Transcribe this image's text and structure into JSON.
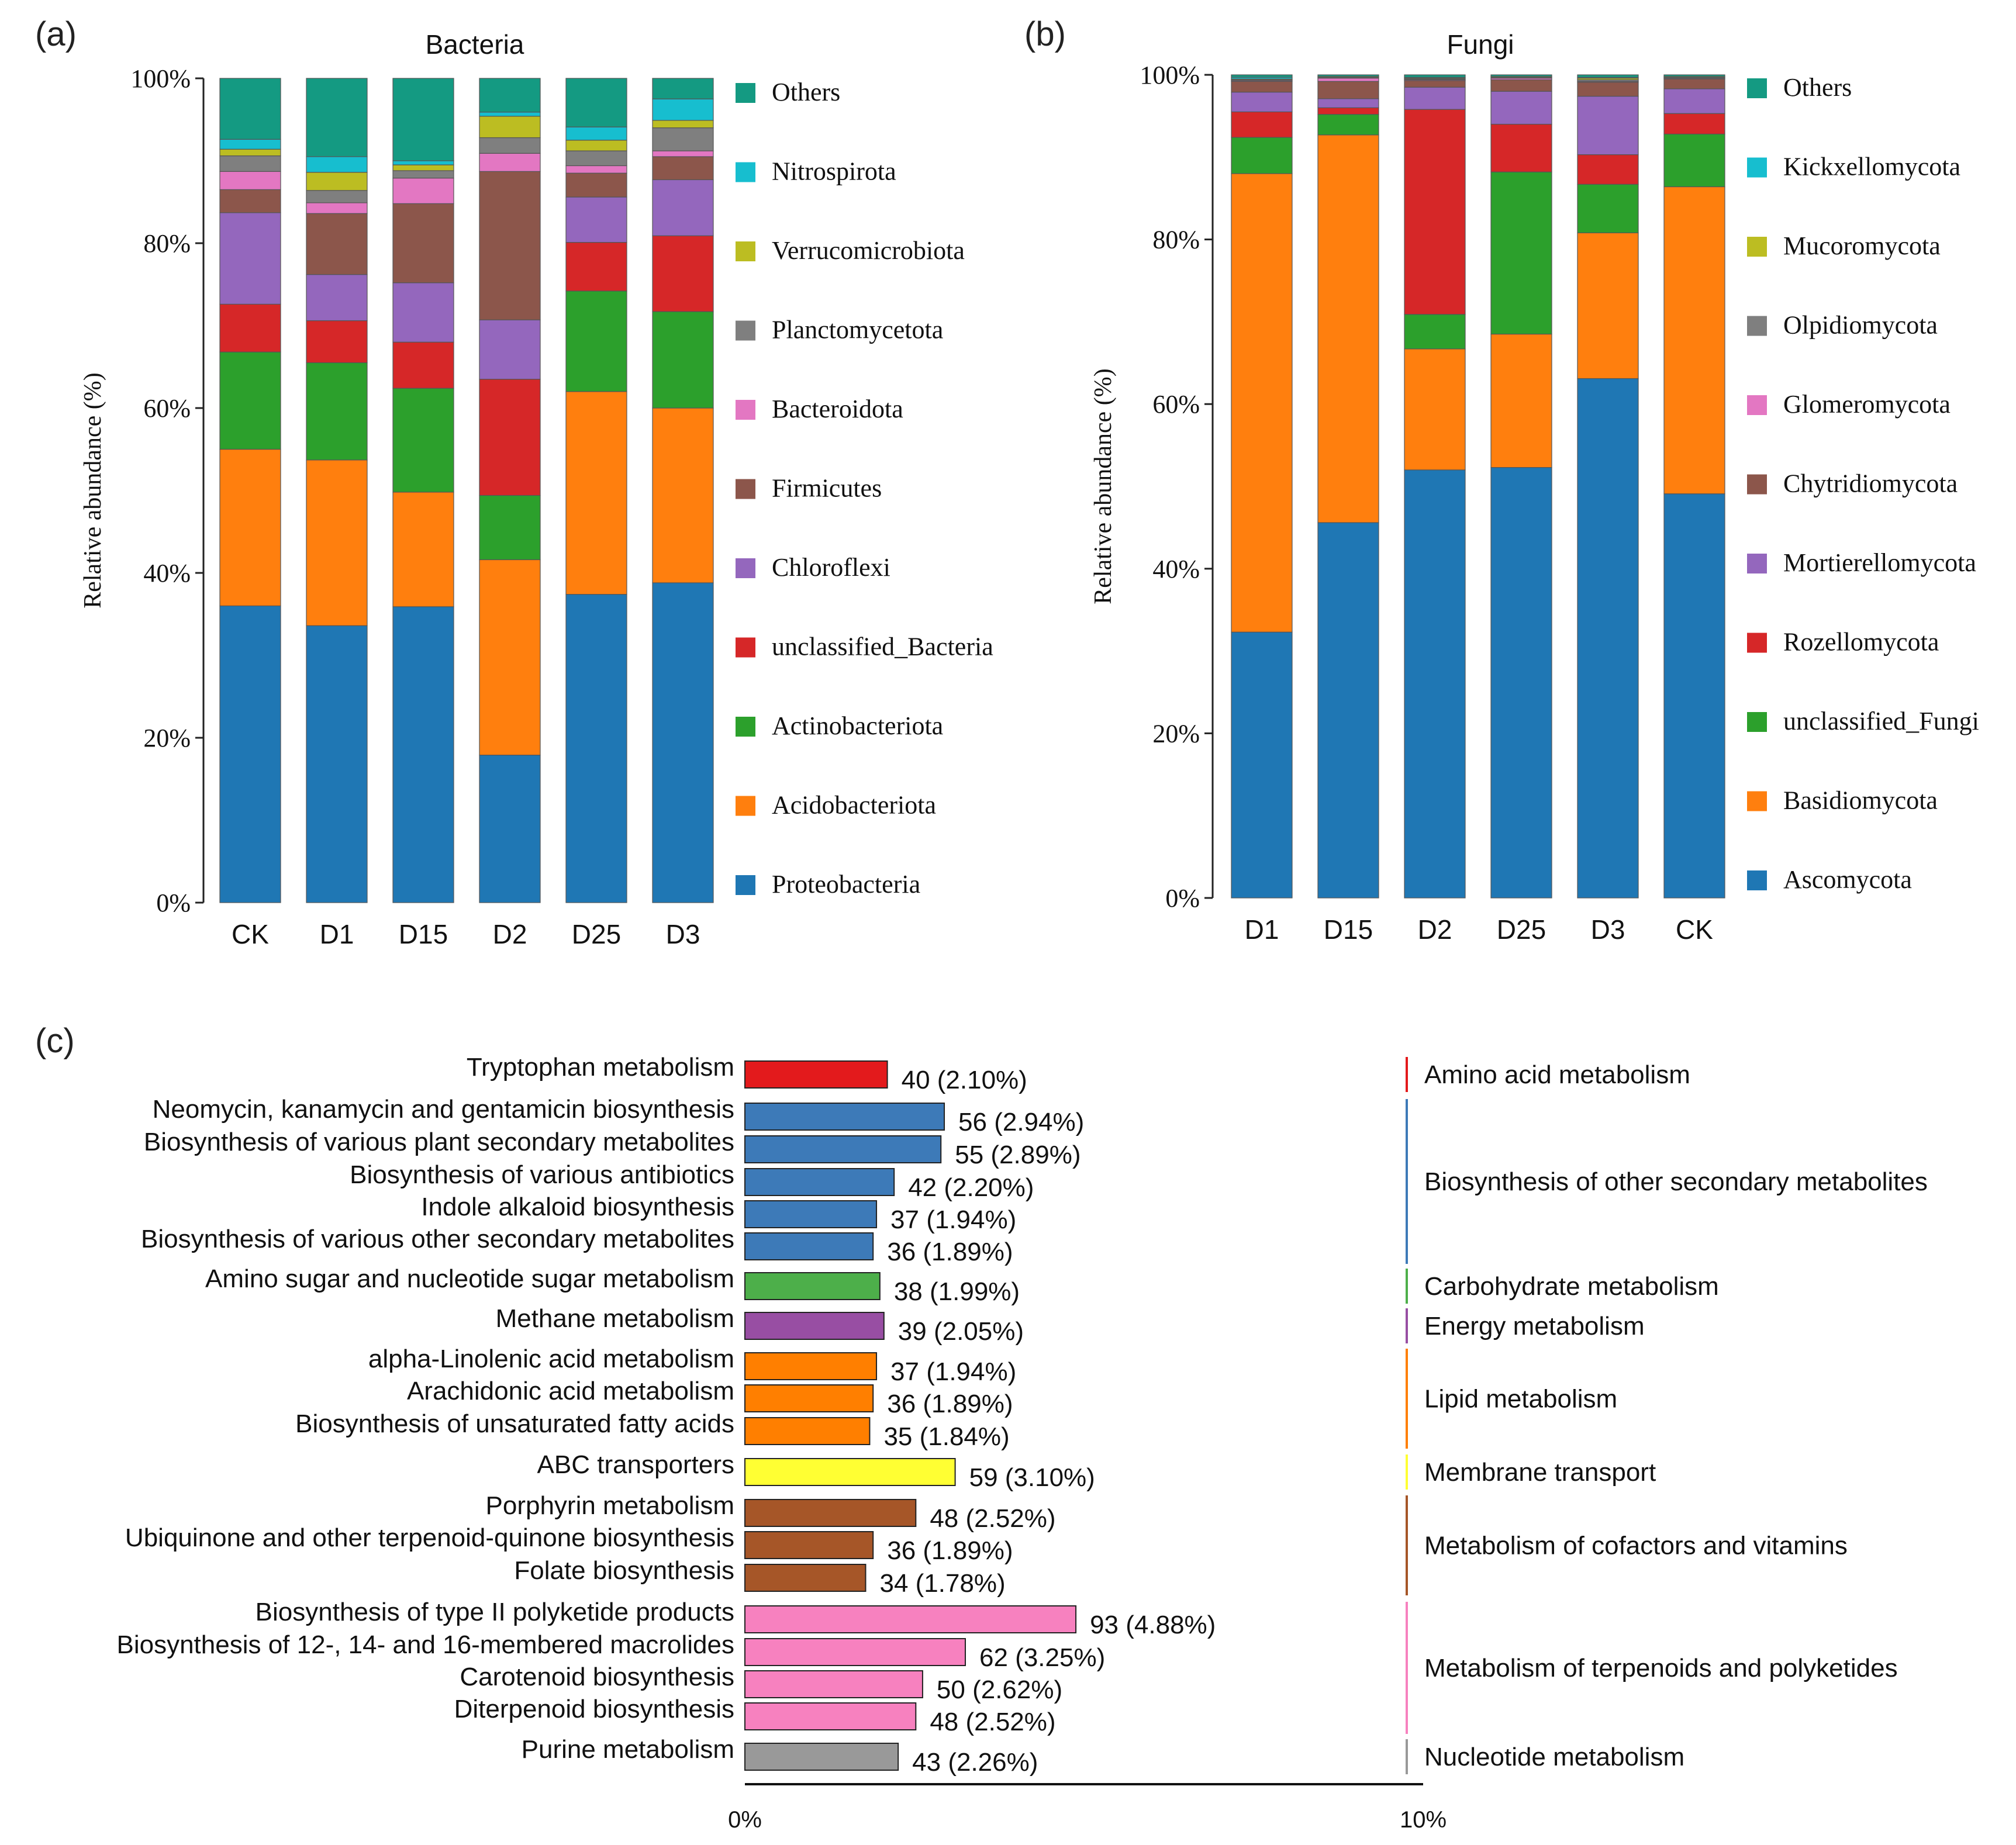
{
  "panels": {
    "a": {
      "label": "(a)"
    },
    "b": {
      "label": "(b)"
    },
    "c": {
      "label": "(c)"
    }
  },
  "colors": {
    "Ascomycota": "#1f77b4",
    "Basidiomycota": "#ff7f0e",
    "unclassified_Fungi": "#2ca02c",
    "Rozellomycota": "#d62728",
    "Mortierellomycota": "#9467bd",
    "Chytridiomycota": "#8c564b",
    "Glomeromycota": "#e377c2",
    "Olpidiomycota": "#7f7f7f",
    "Mucoromycota": "#bcbd22",
    "Kickxellomycota": "#17becf",
    "Others": "#149a82",
    "Proteobacteria": "#1f77b4",
    "Acidobacteriota": "#ff7f0e",
    "Actinobacteriota": "#2ca02c",
    "unclassified_Bacteria": "#d62728",
    "Chloroflexi": "#9467bd",
    "Firmicutes": "#8c564b",
    "Bacteroidota": "#e377c2",
    "Planctomycetota": "#7f7f7f",
    "Verrucomicrobiota": "#bcbd22",
    "Nitrospirota": "#17becf"
  },
  "chart_data": [
    {
      "type": "bar",
      "stacked": true,
      "title": "Bacteria",
      "ylabel": "Relative abundance (%)",
      "xlabel": "",
      "ylim": [
        0,
        100
      ],
      "yticks": [
        "0%",
        "20%",
        "40%",
        "60%",
        "80%",
        "100%"
      ],
      "categories": [
        "CK",
        "D1",
        "D15",
        "D2",
        "D25",
        "D3"
      ],
      "series": [
        {
          "name": "Proteobacteria",
          "values": [
            36.0,
            33.6,
            35.9,
            17.9,
            37.4,
            38.8
          ]
        },
        {
          "name": "Acidobacteriota",
          "values": [
            19.0,
            20.1,
            13.9,
            23.7,
            24.6,
            21.2
          ]
        },
        {
          "name": "Actinobacteriota",
          "values": [
            11.8,
            11.8,
            12.6,
            7.8,
            12.2,
            11.7
          ]
        },
        {
          "name": "unclassified_Bacteria",
          "values": [
            5.8,
            5.1,
            5.6,
            14.1,
            5.9,
            9.2
          ]
        },
        {
          "name": "Chloroflexi",
          "values": [
            11.1,
            5.6,
            7.2,
            7.2,
            5.5,
            6.8
          ]
        },
        {
          "name": "Firmicutes",
          "values": [
            2.8,
            7.4,
            9.6,
            18.0,
            2.9,
            2.8
          ]
        },
        {
          "name": "Bacteroidota",
          "values": [
            2.2,
            1.3,
            3.1,
            2.2,
            0.9,
            0.7
          ]
        },
        {
          "name": "Planctomycetota",
          "values": [
            1.9,
            1.5,
            0.9,
            1.9,
            1.8,
            2.8
          ]
        },
        {
          "name": "Verrucomicrobiota",
          "values": [
            0.8,
            2.2,
            0.7,
            2.6,
            1.3,
            0.9
          ]
        },
        {
          "name": "Nitrospirota",
          "values": [
            1.2,
            1.9,
            0.5,
            0.5,
            1.6,
            2.6
          ]
        },
        {
          "name": "Others",
          "values": [
            7.4,
            9.5,
            10.0,
            4.1,
            5.9,
            2.5
          ]
        }
      ],
      "legend": [
        "Others",
        "Nitrospirota",
        "Verrucomicrobiota",
        "Planctomycetota",
        "Bacteroidota",
        "Firmicutes",
        "Chloroflexi",
        "unclassified_Bacteria",
        "Actinobacteriota",
        "Acidobacteriota",
        "Proteobacteria"
      ],
      "legend_position": "right"
    },
    {
      "type": "bar",
      "stacked": true,
      "title": "Fungi",
      "ylabel": "Relative abundance (%)",
      "xlabel": "",
      "ylim": [
        0,
        100
      ],
      "yticks": [
        "0%",
        "20%",
        "40%",
        "60%",
        "80%",
        "100%"
      ],
      "categories": [
        "D1",
        "D15",
        "D2",
        "D25",
        "D3",
        "CK"
      ],
      "series": [
        {
          "name": "Ascomycota",
          "values": [
            32.3,
            45.6,
            52.0,
            52.3,
            63.1,
            49.1
          ]
        },
        {
          "name": "Basidiomycota",
          "values": [
            55.7,
            47.1,
            14.7,
            16.2,
            17.7,
            37.3
          ]
        },
        {
          "name": "unclassified_Fungi",
          "values": [
            4.4,
            2.5,
            4.2,
            19.7,
            5.9,
            6.4
          ]
        },
        {
          "name": "Rozellomycota",
          "values": [
            3.1,
            0.8,
            24.9,
            5.8,
            3.6,
            2.5
          ]
        },
        {
          "name": "Mortierellomycota",
          "values": [
            2.4,
            1.1,
            2.7,
            4.0,
            7.1,
            3.0
          ]
        },
        {
          "name": "Chytridiomycota",
          "values": [
            1.3,
            2.1,
            0.8,
            1.4,
            1.7,
            1.2
          ]
        },
        {
          "name": "Glomeromycota",
          "values": [
            0.1,
            0.4,
            0.1,
            0.2,
            0.1,
            0.1
          ]
        },
        {
          "name": "Olpidiomycota",
          "values": [
            0.1,
            0.1,
            0.1,
            0.1,
            0.2,
            0.1
          ]
        },
        {
          "name": "Mucoromycota",
          "values": [
            0.1,
            0.1,
            0.1,
            0.1,
            0.2,
            0.1
          ]
        },
        {
          "name": "Kickxellomycota",
          "values": [
            0.2,
            0.0,
            0.1,
            0.0,
            0.1,
            0.0
          ]
        },
        {
          "name": "Others",
          "values": [
            0.3,
            0.2,
            0.3,
            0.2,
            0.3,
            0.2
          ]
        }
      ],
      "legend": [
        "Others",
        "Kickxellomycota",
        "Mucoromycota",
        "Olpidiomycota",
        "Glomeromycota",
        "Chytridiomycota",
        "Mortierellomycota",
        "Rozellomycota",
        "unclassified_Fungi",
        "Basidiomycota",
        "Ascomycota"
      ],
      "legend_position": "right"
    },
    {
      "type": "bar",
      "orientation": "horizontal",
      "title": "",
      "xlim": [
        0,
        10
      ],
      "xticks": [
        "0%",
        "10%"
      ],
      "items": [
        {
          "label": "Tryptophan metabolism",
          "count": 40,
          "percent": 2.1,
          "value_label": "40 (2.10%)",
          "category": "Amino acid metabolism",
          "color": "#e31a1c"
        },
        {
          "label": "Neomycin, kanamycin and gentamicin biosynthesis",
          "count": 56,
          "percent": 2.94,
          "value_label": "56 (2.94%)",
          "category": "Biosynthesis of other secondary metabolites",
          "color": "#3d7ab8"
        },
        {
          "label": "Biosynthesis of various plant secondary metabolites",
          "count": 55,
          "percent": 2.89,
          "value_label": "55 (2.89%)",
          "category": "Biosynthesis of other secondary metabolites",
          "color": "#3d7ab8"
        },
        {
          "label": "Biosynthesis of various antibiotics",
          "count": 42,
          "percent": 2.2,
          "value_label": "42 (2.20%)",
          "category": "Biosynthesis of other secondary metabolites",
          "color": "#3d7ab8"
        },
        {
          "label": "Indole alkaloid biosynthesis",
          "count": 37,
          "percent": 1.94,
          "value_label": "37 (1.94%)",
          "category": "Biosynthesis of other secondary metabolites",
          "color": "#3d7ab8"
        },
        {
          "label": "Biosynthesis of various other secondary metabolites",
          "count": 36,
          "percent": 1.89,
          "value_label": "36 (1.89%)",
          "category": "Biosynthesis of other secondary metabolites",
          "color": "#3d7ab8"
        },
        {
          "label": "Amino sugar and nucleotide sugar metabolism",
          "count": 38,
          "percent": 1.99,
          "value_label": "38 (1.99%)",
          "category": "Carbohydrate metabolism",
          "color": "#4daf4a"
        },
        {
          "label": "Methane metabolism",
          "count": 39,
          "percent": 2.05,
          "value_label": "39 (2.05%)",
          "category": "Energy metabolism",
          "color": "#984ea3"
        },
        {
          "label": "alpha-Linolenic acid metabolism",
          "count": 37,
          "percent": 1.94,
          "value_label": "37 (1.94%)",
          "category": "Lipid metabolism",
          "color": "#ff7f00"
        },
        {
          "label": "Arachidonic acid metabolism",
          "count": 36,
          "percent": 1.89,
          "value_label": "36 (1.89%)",
          "category": "Lipid metabolism",
          "color": "#ff7f00"
        },
        {
          "label": "Biosynthesis of unsaturated fatty acids",
          "count": 35,
          "percent": 1.84,
          "value_label": "35 (1.84%)",
          "category": "Lipid metabolism",
          "color": "#ff7f00"
        },
        {
          "label": "ABC transporters",
          "count": 59,
          "percent": 3.1,
          "value_label": "59 (3.10%)",
          "category": "Membrane transport",
          "color": "#ffff33"
        },
        {
          "label": "Porphyrin metabolism",
          "count": 48,
          "percent": 2.52,
          "value_label": "48 (2.52%)",
          "category": "Metabolism of cofactors and vitamins",
          "color": "#a65628"
        },
        {
          "label": "Ubiquinone and other terpenoid-quinone biosynthesis",
          "count": 36,
          "percent": 1.89,
          "value_label": "36 (1.89%)",
          "category": "Metabolism of cofactors and vitamins",
          "color": "#a65628"
        },
        {
          "label": "Folate biosynthesis",
          "count": 34,
          "percent": 1.78,
          "value_label": "34 (1.78%)",
          "category": "Metabolism of cofactors and vitamins",
          "color": "#a65628"
        },
        {
          "label": "Biosynthesis of type II polyketide products",
          "count": 93,
          "percent": 4.88,
          "value_label": "93 (4.88%)",
          "category": "Metabolism of terpenoids and polyketides",
          "color": "#f781bf"
        },
        {
          "label": "Biosynthesis of 12-, 14- and 16-membered macrolides",
          "count": 62,
          "percent": 3.25,
          "value_label": "62 (3.25%)",
          "category": "Metabolism of terpenoids and polyketides",
          "color": "#f781bf"
        },
        {
          "label": "Carotenoid biosynthesis",
          "count": 50,
          "percent": 2.62,
          "value_label": "50 (2.62%)",
          "category": "Metabolism of terpenoids and polyketides",
          "color": "#f781bf"
        },
        {
          "label": "Diterpenoid biosynthesis",
          "count": 48,
          "percent": 2.52,
          "value_label": "48 (2.52%)",
          "category": "Metabolism of terpenoids and polyketides",
          "color": "#f781bf"
        },
        {
          "label": "Purine metabolism",
          "count": 43,
          "percent": 2.26,
          "value_label": "43 (2.26%)",
          "category": "Nucleotide metabolism",
          "color": "#999999"
        }
      ],
      "categories": [
        {
          "name": "Amino acid metabolism",
          "color": "#e31a1c"
        },
        {
          "name": "Biosynthesis of other secondary metabolites",
          "color": "#3d7ab8"
        },
        {
          "name": "Carbohydrate metabolism",
          "color": "#4daf4a"
        },
        {
          "name": "Energy metabolism",
          "color": "#984ea3"
        },
        {
          "name": "Lipid metabolism",
          "color": "#ff7f00"
        },
        {
          "name": "Membrane transport",
          "color": "#ffff33"
        },
        {
          "name": "Metabolism of cofactors and vitamins",
          "color": "#a65628"
        },
        {
          "name": "Metabolism of terpenoids and polyketides",
          "color": "#f781bf"
        },
        {
          "name": "Nucleotide metabolism",
          "color": "#999999"
        }
      ]
    }
  ]
}
